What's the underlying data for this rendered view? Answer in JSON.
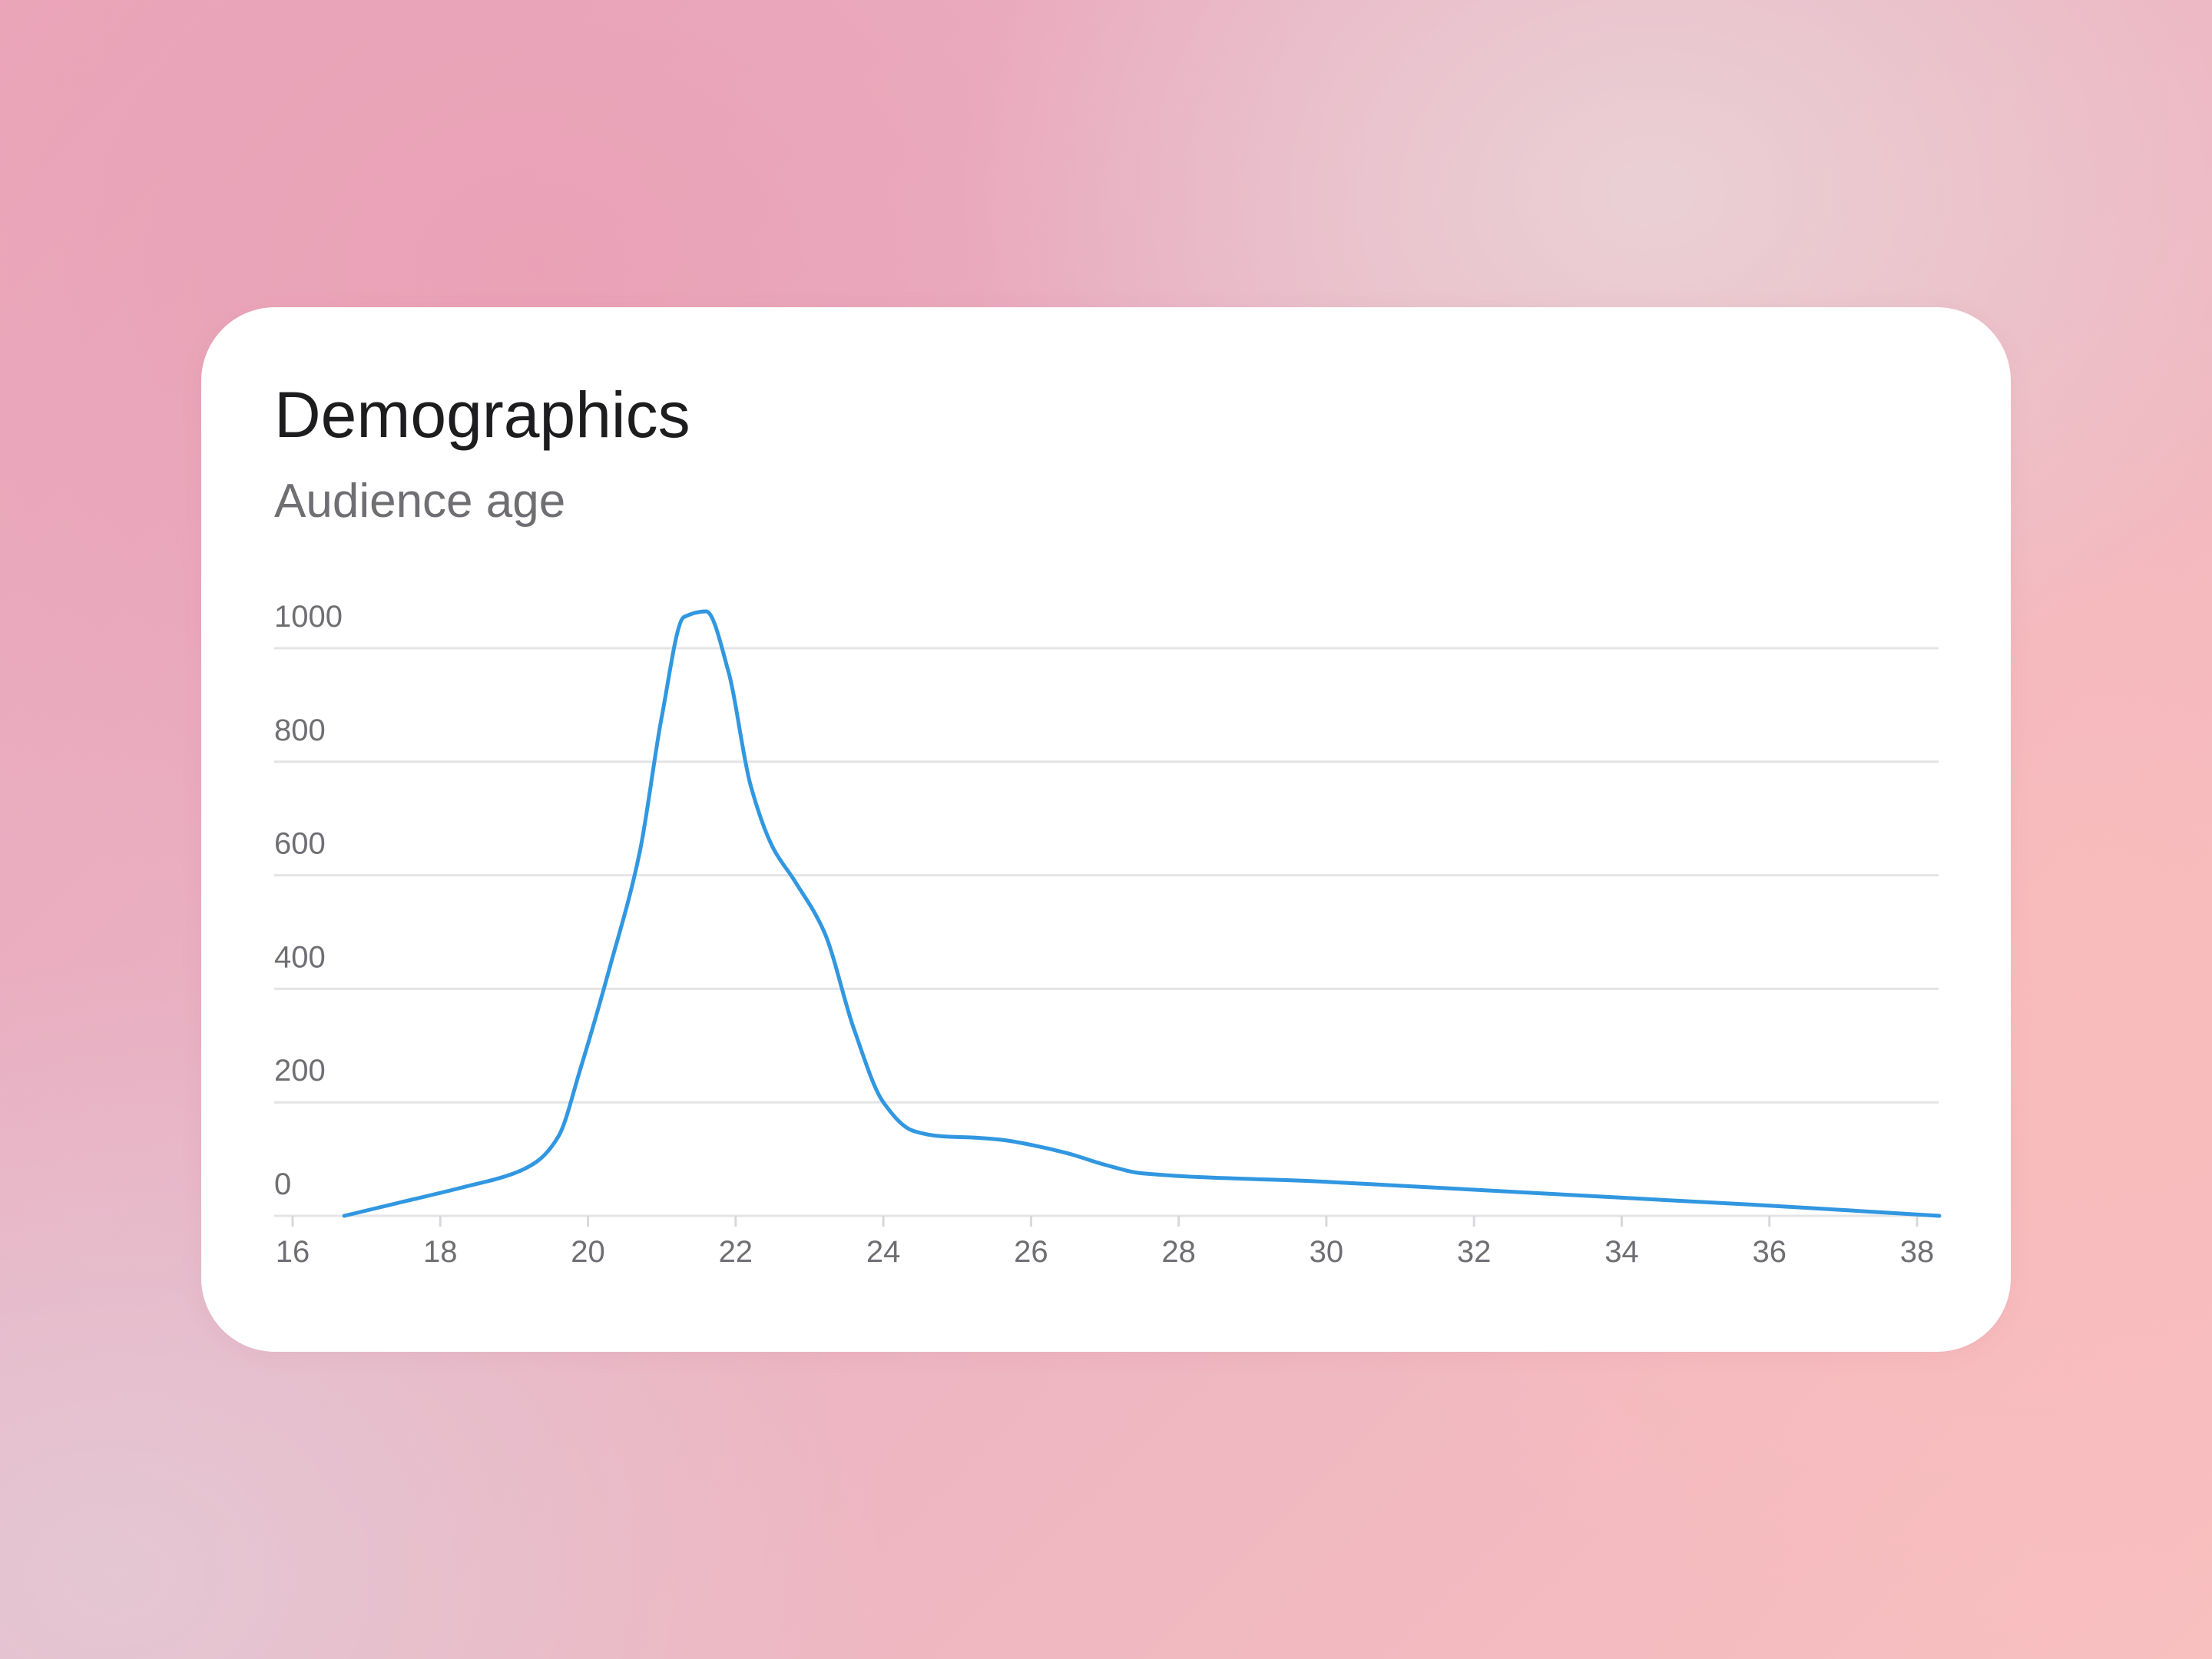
{
  "card": {
    "title": "Demographics",
    "subtitle": "Audience age"
  },
  "chart_data": {
    "type": "line",
    "title": "Demographics",
    "subtitle": "Audience age",
    "xlabel": "",
    "ylabel": "",
    "xlim": [
      16,
      38
    ],
    "ylim": [
      0,
      1000
    ],
    "x_ticks": [
      "16",
      "18",
      "20",
      "22",
      "24",
      "26",
      "28",
      "30",
      "32",
      "34",
      "36",
      "38"
    ],
    "y_ticks": [
      "1000",
      "800",
      "600",
      "400",
      "200",
      "0"
    ],
    "grid": true,
    "line_color": "#3197e0",
    "series": [
      {
        "x": [
          16.7,
          17.5,
          18.3,
          19.0,
          19.3,
          19.6,
          19.9,
          20.3,
          20.7,
          21.0,
          21.3,
          21.6,
          21.9,
          22.2,
          22.5,
          22.8,
          23.2,
          23.6,
          24.0,
          24.4,
          24.8,
          25.2,
          25.6,
          26.0,
          26.5,
          27.0,
          27.5,
          30.0,
          32.0,
          34.0,
          36.0,
          38.3
        ],
        "y": [
          0,
          25,
          50,
          75,
          95,
          140,
          260,
          440,
          640,
          880,
          1055,
          1065,
          960,
          760,
          650,
          590,
          500,
          330,
          200,
          150,
          140,
          138,
          134,
          125,
          110,
          90,
          75,
          60,
          46,
          32,
          18,
          0
        ]
      }
    ]
  }
}
